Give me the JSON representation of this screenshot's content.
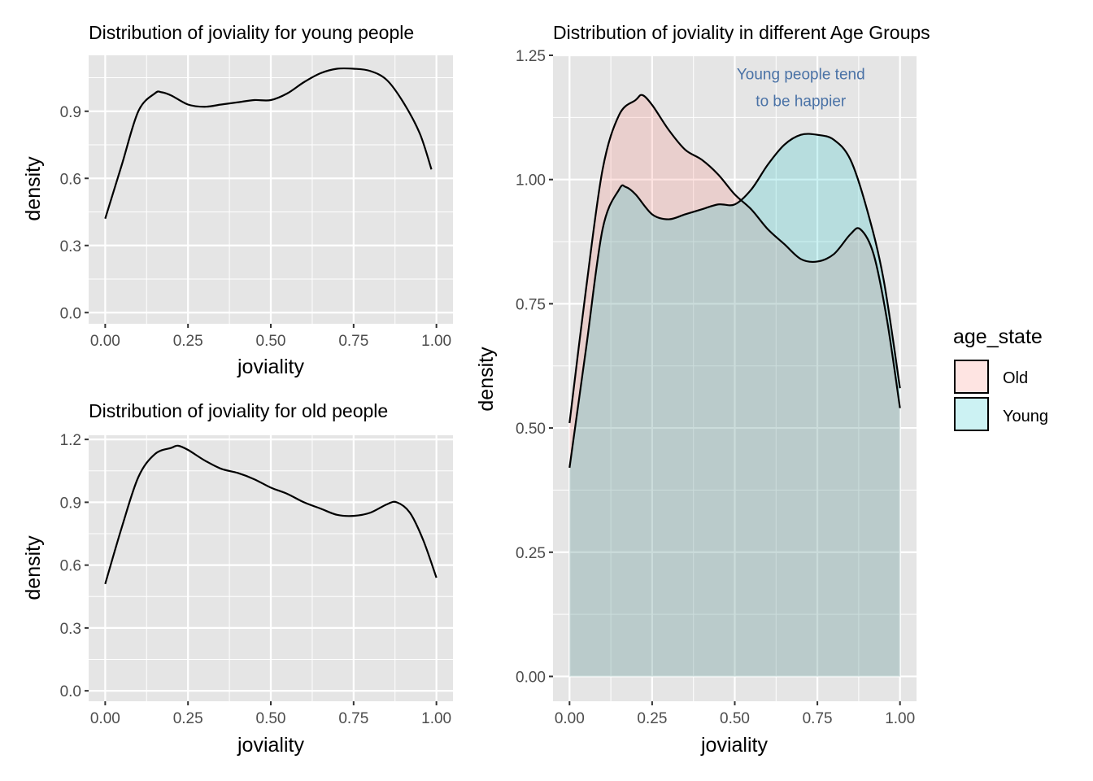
{
  "colors": {
    "panel_bg": "#e5e5e5",
    "grid": "#ffffff",
    "line": "#000000",
    "old_fill": "#f8766d",
    "young_fill": "#00bfc4",
    "annotation": "#4a72a6"
  },
  "chart_data": [
    {
      "type": "line",
      "title": "Distribution of joviality for young people",
      "xlabel": "joviality",
      "ylabel": "density",
      "xlim": [
        -0.05,
        1.05
      ],
      "ylim": [
        -0.05,
        1.15
      ],
      "x_ticks": [
        "0.00",
        "0.25",
        "0.50",
        "0.75",
        "1.00"
      ],
      "y_ticks": [
        "0.0",
        "0.3",
        "0.6",
        "0.9"
      ],
      "grid": true,
      "series": [
        {
          "x": [
            0,
            0.05,
            0.1,
            0.15,
            0.17,
            0.2,
            0.25,
            0.3,
            0.35,
            0.4,
            0.45,
            0.5,
            0.55,
            0.6,
            0.65,
            0.7,
            0.75,
            0.8,
            0.85,
            0.9,
            0.95,
            0.985
          ],
          "y": [
            0.42,
            0.66,
            0.9,
            0.98,
            0.985,
            0.97,
            0.93,
            0.92,
            0.93,
            0.94,
            0.95,
            0.95,
            0.98,
            1.03,
            1.07,
            1.09,
            1.09,
            1.08,
            1.04,
            0.94,
            0.8,
            0.64
          ]
        }
      ]
    },
    {
      "type": "line",
      "title": "Distribution of joviality for old people",
      "xlabel": "joviality",
      "ylabel": "density",
      "xlim": [
        -0.05,
        1.05
      ],
      "ylim": [
        -0.05,
        1.22
      ],
      "x_ticks": [
        "0.00",
        "0.25",
        "0.50",
        "0.75",
        "1.00"
      ],
      "y_ticks": [
        "0.0",
        "0.3",
        "0.6",
        "0.9",
        "1.2"
      ],
      "grid": true,
      "series": [
        {
          "x": [
            0,
            0.05,
            0.1,
            0.15,
            0.2,
            0.22,
            0.25,
            0.3,
            0.35,
            0.4,
            0.45,
            0.5,
            0.55,
            0.6,
            0.65,
            0.7,
            0.75,
            0.8,
            0.85,
            0.88,
            0.92,
            0.96,
            1.0
          ],
          "y": [
            0.51,
            0.78,
            1.02,
            1.13,
            1.16,
            1.17,
            1.15,
            1.1,
            1.06,
            1.04,
            1.01,
            0.97,
            0.94,
            0.9,
            0.87,
            0.84,
            0.835,
            0.85,
            0.89,
            0.9,
            0.85,
            0.72,
            0.54
          ]
        }
      ]
    },
    {
      "type": "area",
      "title": "Distribution of joviality in different Age Groups",
      "xlabel": "joviality",
      "ylabel": "density",
      "xlim": [
        -0.05,
        1.05
      ],
      "ylim": [
        -0.05,
        1.25
      ],
      "x_ticks": [
        "0.00",
        "0.25",
        "0.50",
        "0.75",
        "1.00"
      ],
      "y_ticks": [
        "0.00",
        "0.25",
        "0.50",
        "0.75",
        "1.00",
        "1.25"
      ],
      "grid": true,
      "legend": {
        "title": "age_state",
        "position": "right"
      },
      "annotation": {
        "lines": [
          "Young people tend",
          "to be happier"
        ],
        "x": 0.7,
        "y": 1.2
      },
      "series": [
        {
          "name": "Old",
          "x": [
            0,
            0.05,
            0.1,
            0.15,
            0.2,
            0.22,
            0.25,
            0.3,
            0.35,
            0.4,
            0.45,
            0.5,
            0.55,
            0.6,
            0.65,
            0.7,
            0.75,
            0.8,
            0.85,
            0.88,
            0.92,
            0.96,
            1.0
          ],
          "y": [
            0.51,
            0.78,
            1.02,
            1.13,
            1.16,
            1.17,
            1.15,
            1.1,
            1.06,
            1.04,
            1.01,
            0.97,
            0.94,
            0.9,
            0.87,
            0.84,
            0.835,
            0.85,
            0.89,
            0.9,
            0.85,
            0.72,
            0.54
          ]
        },
        {
          "name": "Young",
          "x": [
            0,
            0.05,
            0.1,
            0.15,
            0.17,
            0.2,
            0.25,
            0.3,
            0.35,
            0.4,
            0.45,
            0.5,
            0.55,
            0.6,
            0.65,
            0.7,
            0.75,
            0.8,
            0.85,
            0.9,
            0.95,
            1.0
          ],
          "y": [
            0.42,
            0.66,
            0.9,
            0.98,
            0.985,
            0.97,
            0.93,
            0.92,
            0.93,
            0.94,
            0.95,
            0.95,
            0.98,
            1.03,
            1.07,
            1.09,
            1.09,
            1.08,
            1.04,
            0.94,
            0.8,
            0.58
          ]
        }
      ]
    }
  ]
}
